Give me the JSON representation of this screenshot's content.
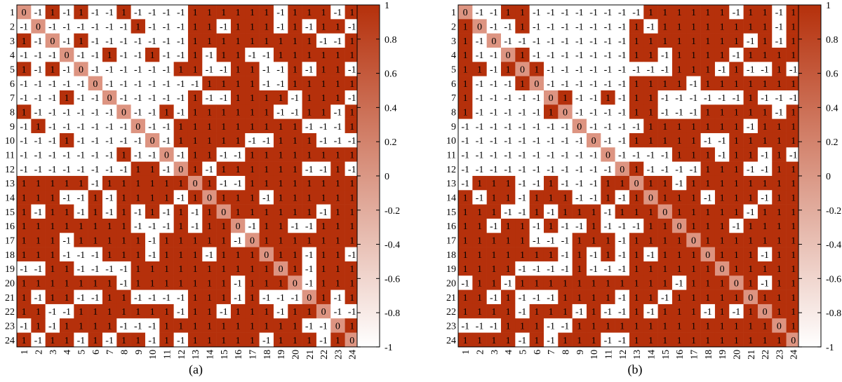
{
  "colors": {
    "positive": "#B5300B",
    "negative": "#FFFFFF",
    "diagonal": "#DD9481",
    "grid": "#000000"
  },
  "chart_data": [
    {
      "type": "heatmap",
      "caption": "(a)",
      "rows": [
        "1",
        "2",
        "3",
        "4",
        "5",
        "6",
        "7",
        "8",
        "9",
        "10",
        "11",
        "12",
        "13",
        "14",
        "15",
        "16",
        "17",
        "18",
        "19",
        "20",
        "21",
        "22",
        "23",
        "24"
      ],
      "cols": [
        "1",
        "2",
        "3",
        "4",
        "5",
        "6",
        "7",
        "8",
        "9",
        "10",
        "11",
        "12",
        "13",
        "14",
        "15",
        "16",
        "17",
        "18",
        "19",
        "20",
        "21",
        "22",
        "23",
        "24"
      ],
      "values": [
        [
          0,
          -1,
          1,
          -1,
          1,
          -1,
          -1,
          1,
          -1,
          -1,
          -1,
          -1,
          1,
          1,
          1,
          1,
          1,
          1,
          -1,
          1,
          1,
          1,
          -1,
          1
        ],
        [
          -1,
          0,
          -1,
          -1,
          -1,
          -1,
          -1,
          -1,
          1,
          -1,
          -1,
          -1,
          1,
          1,
          -1,
          1,
          1,
          1,
          -1,
          1,
          -1,
          1,
          1,
          -1
        ],
        [
          1,
          -1,
          0,
          -1,
          1,
          -1,
          -1,
          -1,
          -1,
          -1,
          -1,
          -1,
          1,
          1,
          1,
          1,
          1,
          1,
          1,
          1,
          1,
          -1,
          -1,
          1
        ],
        [
          -1,
          -1,
          -1,
          0,
          -1,
          -1,
          1,
          -1,
          -1,
          1,
          -1,
          -1,
          1,
          -1,
          1,
          1,
          -1,
          -1,
          1,
          1,
          1,
          1,
          1,
          1
        ],
        [
          1,
          -1,
          1,
          -1,
          0,
          -1,
          -1,
          -1,
          -1,
          -1,
          -1,
          1,
          1,
          -1,
          -1,
          1,
          1,
          -1,
          -1,
          1,
          -1,
          1,
          1,
          -1
        ],
        [
          -1,
          -1,
          -1,
          -1,
          -1,
          0,
          -1,
          -1,
          -1,
          -1,
          -1,
          -1,
          -1,
          1,
          1,
          1,
          1,
          -1,
          -1,
          1,
          1,
          1,
          1,
          1
        ],
        [
          -1,
          -1,
          -1,
          1,
          -1,
          -1,
          0,
          -1,
          -1,
          -1,
          -1,
          -1,
          1,
          -1,
          -1,
          1,
          1,
          1,
          1,
          -1,
          1,
          1,
          1,
          -1
        ],
        [
          1,
          -1,
          -1,
          -1,
          -1,
          -1,
          -1,
          0,
          -1,
          -1,
          1,
          -1,
          1,
          1,
          1,
          1,
          1,
          1,
          -1,
          -1,
          1,
          1,
          -1,
          1
        ],
        [
          -1,
          1,
          -1,
          -1,
          -1,
          -1,
          -1,
          -1,
          0,
          -1,
          -1,
          1,
          1,
          1,
          1,
          1,
          1,
          1,
          1,
          1,
          -1,
          -1,
          -1,
          1
        ],
        [
          -1,
          -1,
          -1,
          1,
          -1,
          -1,
          -1,
          -1,
          -1,
          0,
          -1,
          1,
          1,
          1,
          1,
          1,
          -1,
          -1,
          1,
          1,
          1,
          -1,
          -1,
          -1
        ],
        [
          -1,
          -1,
          -1,
          -1,
          -1,
          -1,
          -1,
          1,
          -1,
          -1,
          0,
          -1,
          1,
          1,
          -1,
          -1,
          1,
          1,
          1,
          1,
          1,
          1,
          1,
          1
        ],
        [
          -1,
          -1,
          -1,
          -1,
          -1,
          -1,
          -1,
          -1,
          1,
          1,
          -1,
          0,
          1,
          -1,
          1,
          1,
          1,
          1,
          1,
          1,
          -1,
          -1,
          1,
          -1
        ],
        [
          1,
          1,
          1,
          1,
          1,
          -1,
          1,
          1,
          1,
          1,
          1,
          1,
          0,
          1,
          -1,
          -1,
          1,
          1,
          1,
          1,
          1,
          1,
          1,
          1
        ],
        [
          1,
          1,
          1,
          -1,
          -1,
          1,
          -1,
          1,
          1,
          1,
          1,
          -1,
          1,
          0,
          1,
          1,
          1,
          -1,
          1,
          1,
          1,
          1,
          1,
          1
        ],
        [
          1,
          -1,
          1,
          1,
          -1,
          1,
          -1,
          1,
          -1,
          1,
          -1,
          1,
          -1,
          1,
          0,
          1,
          1,
          1,
          1,
          1,
          1,
          -1,
          1,
          1
        ],
        [
          1,
          1,
          1,
          1,
          1,
          1,
          1,
          1,
          -1,
          -1,
          -1,
          1,
          -1,
          1,
          1,
          0,
          -1,
          1,
          1,
          -1,
          -1,
          1,
          1,
          1
        ],
        [
          1,
          1,
          1,
          -1,
          1,
          1,
          1,
          1,
          1,
          -1,
          1,
          1,
          1,
          1,
          1,
          -1,
          0,
          1,
          1,
          1,
          1,
          1,
          1,
          1
        ],
        [
          1,
          1,
          1,
          -1,
          -1,
          -1,
          1,
          1,
          1,
          -1,
          1,
          1,
          1,
          -1,
          1,
          1,
          1,
          0,
          1,
          1,
          -1,
          1,
          1,
          -1
        ],
        [
          -1,
          -1,
          1,
          1,
          -1,
          -1,
          -1,
          -1,
          1,
          1,
          1,
          1,
          1,
          1,
          1,
          1,
          1,
          1,
          0,
          1,
          -1,
          1,
          1,
          1
        ],
        [
          1,
          1,
          1,
          1,
          1,
          1,
          1,
          -1,
          1,
          1,
          1,
          1,
          1,
          1,
          1,
          -1,
          1,
          1,
          1,
          0,
          -1,
          1,
          1,
          1
        ],
        [
          1,
          -1,
          1,
          1,
          -1,
          -1,
          1,
          1,
          -1,
          -1,
          -1,
          -1,
          1,
          1,
          1,
          -1,
          1,
          -1,
          -1,
          -1,
          0,
          1,
          -1,
          1
        ],
        [
          1,
          1,
          -1,
          -1,
          1,
          1,
          1,
          1,
          1,
          1,
          1,
          -1,
          1,
          1,
          -1,
          1,
          1,
          1,
          -1,
          1,
          1,
          0,
          -1,
          -1
        ],
        [
          -1,
          1,
          -1,
          1,
          1,
          1,
          1,
          -1,
          -1,
          -1,
          1,
          1,
          1,
          1,
          1,
          1,
          1,
          1,
          1,
          1,
          -1,
          -1,
          0,
          1
        ],
        [
          1,
          -1,
          1,
          1,
          -1,
          1,
          -1,
          1,
          1,
          -1,
          1,
          -1,
          1,
          1,
          1,
          1,
          1,
          -1,
          1,
          1,
          1,
          -1,
          1,
          0
        ]
      ],
      "colorbar": {
        "min": -1,
        "max": 1,
        "ticks": [
          "1",
          "0.8",
          "0.6",
          "0.4",
          "0.2",
          "0",
          "-0.2",
          "-0.4",
          "-0.6",
          "-0.8",
          "-1"
        ]
      }
    },
    {
      "type": "heatmap",
      "caption": "(b)",
      "rows": [
        "1",
        "2",
        "3",
        "4",
        "5",
        "6",
        "7",
        "8",
        "9",
        "10",
        "11",
        "12",
        "13",
        "14",
        "15",
        "16",
        "17",
        "18",
        "19",
        "20",
        "21",
        "22",
        "23",
        "24"
      ],
      "cols": [
        "1",
        "2",
        "3",
        "4",
        "5",
        "6",
        "7",
        "8",
        "9",
        "10",
        "11",
        "12",
        "13",
        "14",
        "15",
        "16",
        "17",
        "18",
        "19",
        "20",
        "21",
        "22",
        "23",
        "24"
      ],
      "values": [
        [
          0,
          -1,
          -1,
          1,
          1,
          -1,
          -1,
          -1,
          -1,
          -1,
          -1,
          -1,
          -1,
          1,
          1,
          1,
          1,
          1,
          1,
          -1,
          1,
          1,
          -1,
          1
        ],
        [
          1,
          0,
          -1,
          -1,
          1,
          -1,
          -1,
          -1,
          -1,
          -1,
          -1,
          -1,
          1,
          -1,
          1,
          1,
          1,
          1,
          1,
          1,
          1,
          1,
          -1,
          1
        ],
        [
          1,
          -1,
          0,
          -1,
          -1,
          -1,
          -1,
          -1,
          -1,
          -1,
          -1,
          -1,
          1,
          1,
          1,
          1,
          1,
          1,
          1,
          1,
          -1,
          1,
          -1,
          1
        ],
        [
          1,
          -1,
          -1,
          0,
          1,
          -1,
          -1,
          -1,
          -1,
          -1,
          -1,
          -1,
          1,
          1,
          -1,
          1,
          1,
          1,
          1,
          -1,
          1,
          1,
          1,
          1
        ],
        [
          1,
          1,
          -1,
          1,
          0,
          1,
          -1,
          -1,
          -1,
          -1,
          -1,
          -1,
          -1,
          -1,
          -1,
          1,
          1,
          1,
          -1,
          1,
          -1,
          -1,
          1,
          -1
        ],
        [
          1,
          -1,
          -1,
          -1,
          1,
          0,
          -1,
          -1,
          -1,
          -1,
          -1,
          -1,
          1,
          1,
          1,
          1,
          -1,
          1,
          1,
          1,
          1,
          1,
          1,
          1
        ],
        [
          1,
          -1,
          -1,
          -1,
          -1,
          -1,
          0,
          1,
          -1,
          -1,
          1,
          -1,
          1,
          1,
          -1,
          -1,
          -1,
          -1,
          -1,
          -1,
          1,
          -1,
          -1,
          -1
        ],
        [
          1,
          -1,
          -1,
          -1,
          -1,
          -1,
          1,
          0,
          -1,
          -1,
          -1,
          -1,
          1,
          1,
          -1,
          -1,
          -1,
          1,
          1,
          1,
          1,
          1,
          -1,
          1
        ],
        [
          -1,
          -1,
          -1,
          -1,
          -1,
          -1,
          -1,
          -1,
          0,
          -1,
          -1,
          -1,
          -1,
          1,
          1,
          1,
          1,
          1,
          1,
          1,
          -1,
          1,
          1,
          1
        ],
        [
          -1,
          -1,
          -1,
          -1,
          -1,
          -1,
          -1,
          -1,
          -1,
          0,
          -1,
          -1,
          1,
          1,
          1,
          1,
          1,
          -1,
          -1,
          1,
          1,
          1,
          1,
          1
        ],
        [
          -1,
          -1,
          -1,
          -1,
          -1,
          -1,
          -1,
          -1,
          -1,
          -1,
          0,
          -1,
          -1,
          -1,
          -1,
          1,
          1,
          1,
          -1,
          1,
          1,
          -1,
          1,
          -1
        ],
        [
          -1,
          -1,
          -1,
          -1,
          -1,
          -1,
          -1,
          -1,
          -1,
          -1,
          -1,
          0,
          1,
          -1,
          -1,
          -1,
          -1,
          1,
          1,
          1,
          -1,
          -1,
          1,
          1
        ],
        [
          -1,
          1,
          1,
          1,
          -1,
          -1,
          1,
          -1,
          -1,
          -1,
          1,
          1,
          0,
          1,
          1,
          -1,
          1,
          1,
          1,
          1,
          1,
          1,
          1,
          1
        ],
        [
          1,
          -1,
          1,
          1,
          -1,
          1,
          1,
          1,
          -1,
          -1,
          1,
          -1,
          1,
          0,
          1,
          1,
          1,
          -1,
          1,
          1,
          1,
          -1,
          1,
          1
        ],
        [
          1,
          1,
          1,
          -1,
          -1,
          1,
          -1,
          1,
          1,
          1,
          -1,
          1,
          1,
          1,
          0,
          1,
          1,
          1,
          1,
          1,
          -1,
          1,
          1,
          1
        ],
        [
          1,
          1,
          -1,
          1,
          1,
          -1,
          1,
          -1,
          -1,
          1,
          -1,
          -1,
          -1,
          1,
          1,
          0,
          1,
          1,
          1,
          -1,
          1,
          1,
          1,
          1
        ],
        [
          1,
          1,
          1,
          1,
          1,
          -1,
          -1,
          -1,
          1,
          1,
          1,
          -1,
          1,
          1,
          1,
          1,
          0,
          1,
          1,
          1,
          1,
          1,
          1,
          1
        ],
        [
          1,
          1,
          1,
          1,
          1,
          1,
          1,
          -1,
          1,
          -1,
          1,
          -1,
          1,
          -1,
          1,
          1,
          1,
          0,
          1,
          1,
          1,
          -1,
          1,
          1
        ],
        [
          1,
          1,
          1,
          1,
          -1,
          -1,
          -1,
          -1,
          1,
          -1,
          -1,
          -1,
          1,
          1,
          1,
          1,
          1,
          1,
          0,
          1,
          1,
          1,
          1,
          1
        ],
        [
          -1,
          1,
          1,
          -1,
          1,
          1,
          1,
          1,
          1,
          1,
          1,
          1,
          1,
          1,
          1,
          -1,
          1,
          1,
          1,
          0,
          1,
          -1,
          1,
          1
        ],
        [
          1,
          1,
          -1,
          1,
          -1,
          -1,
          -1,
          1,
          1,
          1,
          1,
          -1,
          1,
          1,
          -1,
          1,
          1,
          1,
          1,
          1,
          0,
          1,
          1,
          1
        ],
        [
          1,
          1,
          1,
          1,
          -1,
          1,
          1,
          1,
          -1,
          1,
          -1,
          -1,
          1,
          -1,
          1,
          1,
          1,
          -1,
          1,
          -1,
          1,
          0,
          1,
          1
        ],
        [
          -1,
          -1,
          -1,
          1,
          1,
          1,
          -1,
          -1,
          1,
          1,
          1,
          1,
          1,
          1,
          1,
          1,
          1,
          1,
          1,
          1,
          1,
          1,
          0,
          1
        ],
        [
          1,
          1,
          1,
          1,
          -1,
          1,
          -1,
          1,
          1,
          1,
          -1,
          -1,
          1,
          1,
          1,
          1,
          1,
          1,
          1,
          1,
          1,
          1,
          1,
          0
        ]
      ],
      "colorbar": {
        "min": -1,
        "max": 1,
        "ticks": [
          "1",
          "0.8",
          "0.6",
          "0.4",
          "0.2",
          "0",
          "-0.2",
          "-0.4",
          "-0.6",
          "-0.8",
          "-1"
        ]
      }
    }
  ]
}
